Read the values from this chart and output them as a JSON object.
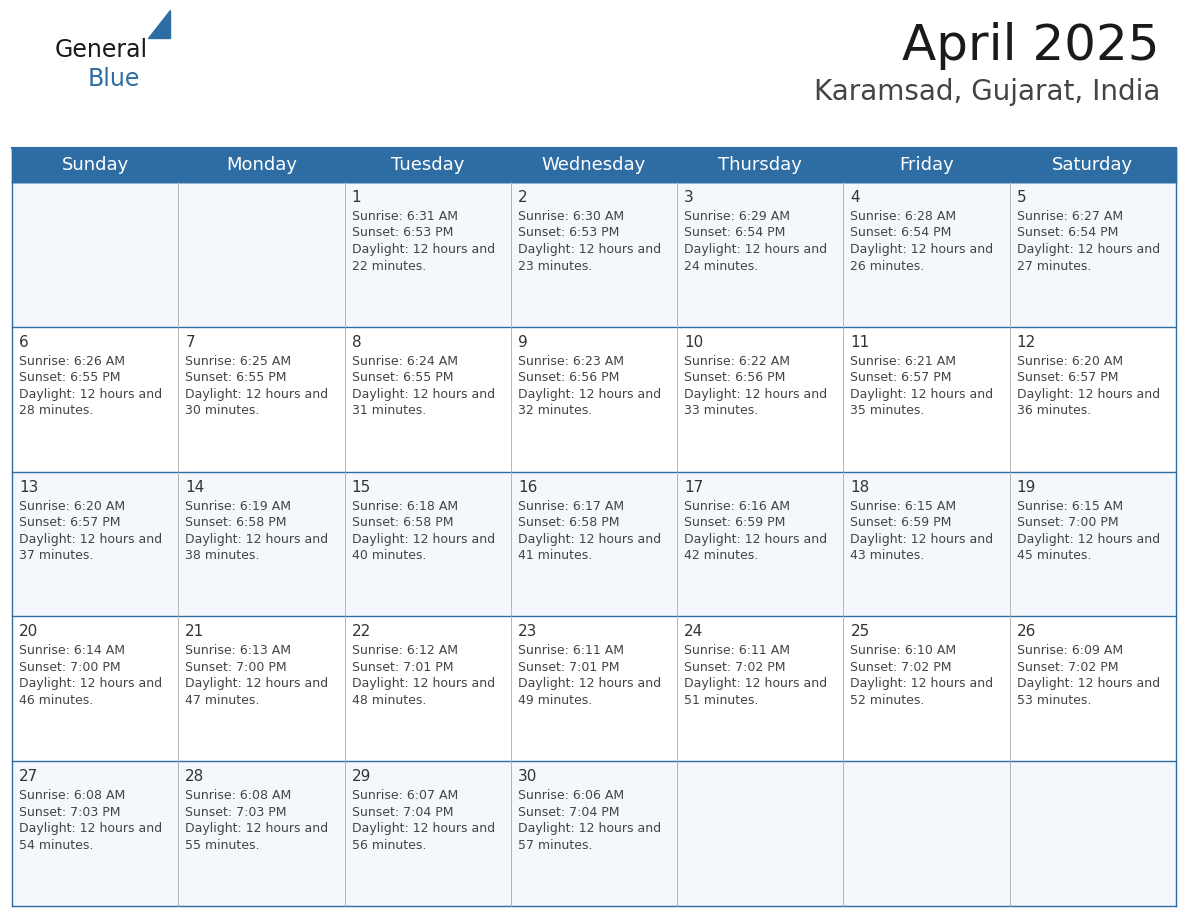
{
  "title": "April 2025",
  "subtitle": "Karamsad, Gujarat, India",
  "header_bg": "#2E6DA4",
  "header_text_color": "#FFFFFF",
  "border_color": "#2E6DA4",
  "cell_border_color": "#AAAAAA",
  "text_color": "#444444",
  "day_number_color": "#333333",
  "days_of_week": [
    "Sunday",
    "Monday",
    "Tuesday",
    "Wednesday",
    "Thursday",
    "Friday",
    "Saturday"
  ],
  "calendar": [
    [
      {
        "day": "",
        "sunrise": "",
        "sunset": "",
        "daylight": ""
      },
      {
        "day": "",
        "sunrise": "",
        "sunset": "",
        "daylight": ""
      },
      {
        "day": "1",
        "sunrise": "6:31 AM",
        "sunset": "6:53 PM",
        "daylight": "12 hours and 22 minutes."
      },
      {
        "day": "2",
        "sunrise": "6:30 AM",
        "sunset": "6:53 PM",
        "daylight": "12 hours and 23 minutes."
      },
      {
        "day": "3",
        "sunrise": "6:29 AM",
        "sunset": "6:54 PM",
        "daylight": "12 hours and 24 minutes."
      },
      {
        "day": "4",
        "sunrise": "6:28 AM",
        "sunset": "6:54 PM",
        "daylight": "12 hours and 26 minutes."
      },
      {
        "day": "5",
        "sunrise": "6:27 AM",
        "sunset": "6:54 PM",
        "daylight": "12 hours and 27 minutes."
      }
    ],
    [
      {
        "day": "6",
        "sunrise": "6:26 AM",
        "sunset": "6:55 PM",
        "daylight": "12 hours and 28 minutes."
      },
      {
        "day": "7",
        "sunrise": "6:25 AM",
        "sunset": "6:55 PM",
        "daylight": "12 hours and 30 minutes."
      },
      {
        "day": "8",
        "sunrise": "6:24 AM",
        "sunset": "6:55 PM",
        "daylight": "12 hours and 31 minutes."
      },
      {
        "day": "9",
        "sunrise": "6:23 AM",
        "sunset": "6:56 PM",
        "daylight": "12 hours and 32 minutes."
      },
      {
        "day": "10",
        "sunrise": "6:22 AM",
        "sunset": "6:56 PM",
        "daylight": "12 hours and 33 minutes."
      },
      {
        "day": "11",
        "sunrise": "6:21 AM",
        "sunset": "6:57 PM",
        "daylight": "12 hours and 35 minutes."
      },
      {
        "day": "12",
        "sunrise": "6:20 AM",
        "sunset": "6:57 PM",
        "daylight": "12 hours and 36 minutes."
      }
    ],
    [
      {
        "day": "13",
        "sunrise": "6:20 AM",
        "sunset": "6:57 PM",
        "daylight": "12 hours and 37 minutes."
      },
      {
        "day": "14",
        "sunrise": "6:19 AM",
        "sunset": "6:58 PM",
        "daylight": "12 hours and 38 minutes."
      },
      {
        "day": "15",
        "sunrise": "6:18 AM",
        "sunset": "6:58 PM",
        "daylight": "12 hours and 40 minutes."
      },
      {
        "day": "16",
        "sunrise": "6:17 AM",
        "sunset": "6:58 PM",
        "daylight": "12 hours and 41 minutes."
      },
      {
        "day": "17",
        "sunrise": "6:16 AM",
        "sunset": "6:59 PM",
        "daylight": "12 hours and 42 minutes."
      },
      {
        "day": "18",
        "sunrise": "6:15 AM",
        "sunset": "6:59 PM",
        "daylight": "12 hours and 43 minutes."
      },
      {
        "day": "19",
        "sunrise": "6:15 AM",
        "sunset": "7:00 PM",
        "daylight": "12 hours and 45 minutes."
      }
    ],
    [
      {
        "day": "20",
        "sunrise": "6:14 AM",
        "sunset": "7:00 PM",
        "daylight": "12 hours and 46 minutes."
      },
      {
        "day": "21",
        "sunrise": "6:13 AM",
        "sunset": "7:00 PM",
        "daylight": "12 hours and 47 minutes."
      },
      {
        "day": "22",
        "sunrise": "6:12 AM",
        "sunset": "7:01 PM",
        "daylight": "12 hours and 48 minutes."
      },
      {
        "day": "23",
        "sunrise": "6:11 AM",
        "sunset": "7:01 PM",
        "daylight": "12 hours and 49 minutes."
      },
      {
        "day": "24",
        "sunrise": "6:11 AM",
        "sunset": "7:02 PM",
        "daylight": "12 hours and 51 minutes."
      },
      {
        "day": "25",
        "sunrise": "6:10 AM",
        "sunset": "7:02 PM",
        "daylight": "12 hours and 52 minutes."
      },
      {
        "day": "26",
        "sunrise": "6:09 AM",
        "sunset": "7:02 PM",
        "daylight": "12 hours and 53 minutes."
      }
    ],
    [
      {
        "day": "27",
        "sunrise": "6:08 AM",
        "sunset": "7:03 PM",
        "daylight": "12 hours and 54 minutes."
      },
      {
        "day": "28",
        "sunrise": "6:08 AM",
        "sunset": "7:03 PM",
        "daylight": "12 hours and 55 minutes."
      },
      {
        "day": "29",
        "sunrise": "6:07 AM",
        "sunset": "7:04 PM",
        "daylight": "12 hours and 56 minutes."
      },
      {
        "day": "30",
        "sunrise": "6:06 AM",
        "sunset": "7:04 PM",
        "daylight": "12 hours and 57 minutes."
      },
      {
        "day": "",
        "sunrise": "",
        "sunset": "",
        "daylight": ""
      },
      {
        "day": "",
        "sunrise": "",
        "sunset": "",
        "daylight": ""
      },
      {
        "day": "",
        "sunrise": "",
        "sunset": "",
        "daylight": ""
      }
    ]
  ],
  "logo_text1": "General",
  "logo_text2": "Blue",
  "logo_color1": "#1a1a1a",
  "logo_color2": "#2E6DA4",
  "title_fontsize": 36,
  "subtitle_fontsize": 20,
  "header_fontsize": 13,
  "day_num_fontsize": 11,
  "cell_text_fontsize": 9
}
